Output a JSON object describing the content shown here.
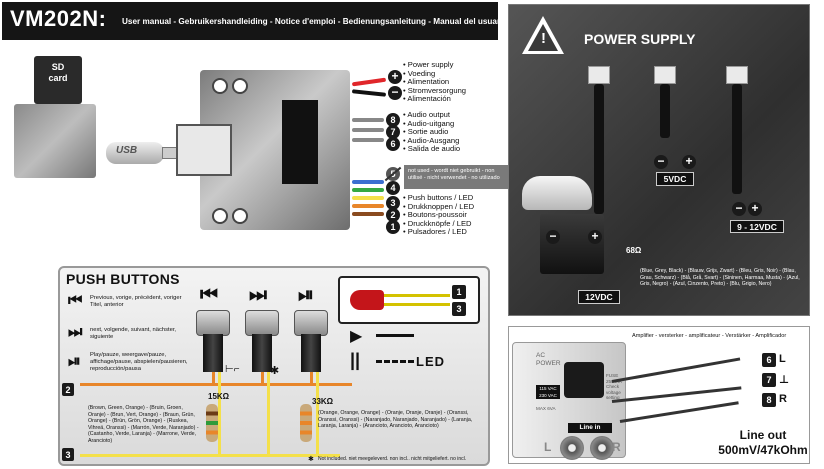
{
  "header": {
    "model": "VM202N:",
    "subtitle": "User manual - Gebruikershandleiding - Notice d'emploi - Bedienungsanleitung - Manual del usuario"
  },
  "board": {
    "sd_card_line1": "SD",
    "sd_card_line2": "card",
    "usb_label": "USB",
    "power_supply_items": [
      "Power supply",
      "Voeding",
      "Alimentation",
      "Stromversorgung",
      "Alimentación"
    ],
    "audio_output_items": [
      "Audio output",
      "Audio-uitgang",
      "Sortie audio",
      "Audio-Ausgang",
      "Salida de audio"
    ],
    "not_used_line1": "not used - wordt niet gebruikt - non",
    "not_used_line2": "utilisé - nicht verwendet - no utilizado",
    "push_button_items": [
      "Push buttons / LED",
      "Drukknoppen / LED",
      "Boutons-poussoir",
      "Druckknöpfe / LED",
      "Pulsadores / LED"
    ],
    "connector_numbers": [
      "8",
      "7",
      "6",
      "5",
      "4",
      "3",
      "2",
      "1"
    ],
    "plus_symbol": "+",
    "minus_symbol": "−"
  },
  "push_buttons": {
    "title": "PUSH BUTTONS",
    "prev_desc": "Previous, vorige, précédent, voriger Titel, anterior",
    "next_desc": "next, volgende, suivant, nächster, siguiente",
    "play_desc": "Play/pauze, weergave/pauze, affichage/pause, abspielen/pausieren, reproducción/pausa",
    "led_numbers": [
      "1",
      "3"
    ],
    "led_label": "LED",
    "res_15k": "15KΩ",
    "res_33k": "33KΩ",
    "res_15k_colors": "(Brown, Green, Orange) - (Bruin, Groen, Oranje) - (Brun, Vert, Orange) - (Braun, Grün, Orange) - (Brún, Grön, Orange) - (Ruskea, Vihreä, Oranssi) - (Marrón, Verde, Naranjado) - (Castanho, Verde, Laranja) - (Marrone, Verde, Arancioto)",
    "res_33k_colors": "(Orange, Orange, Orange) - (Oranje, Oranje, Oranje) - (Oranssi, Oranssi, Oranssi) - (Naranjado, Naranjado, Naranjado) - (Laranja, Laranja, Laranja) - (Arancioto, Arancioto, Arancioto)",
    "line_numbers": [
      "2",
      "3"
    ],
    "footnote": "Not included. niet meegeleverd. non incl.. nicht mitgeliefert. no incl."
  },
  "power_supply": {
    "title": "POWER SUPPLY",
    "v5": "5VDC",
    "v9_12": "9 - 12VDC",
    "v12": "12VDC",
    "res68": "68Ω",
    "wire_colors": "(Blue, Grey, Black) - (Blauw, Grijs, Zwart) - (Bleu, Gris, Noir) - (Blau, Grau, Schwarz) - (Blå, Grå, Svart) - (Sininen, Harmaa, Musta) - (Azul, Gris, Negro) - (Azul, Cinzento, Preto) - (Blu, Grigio, Nero)"
  },
  "amplifier": {
    "header": "Amplifier - versterker - amplificateur - Verstärker - Amplificador",
    "ac_power_line1": "AC",
    "ac_power_line2": "POWER",
    "volt_line1": "115 VAC",
    "volt_line2": "230 VAC",
    "fuse_text": "FUSE 250 mA Check voltage setting",
    "max_va": "MAX 6VA",
    "line_in": "Line in",
    "left_channel": "L",
    "right_channel": "R",
    "jack_6": "6",
    "jack_7": "7",
    "jack_8": "8",
    "jack_6_label": "L",
    "jack_7_label": "⊥",
    "jack_8_label": "R",
    "line_out_line1": "Line out",
    "line_out_line2": "500mV/47kOhm"
  }
}
